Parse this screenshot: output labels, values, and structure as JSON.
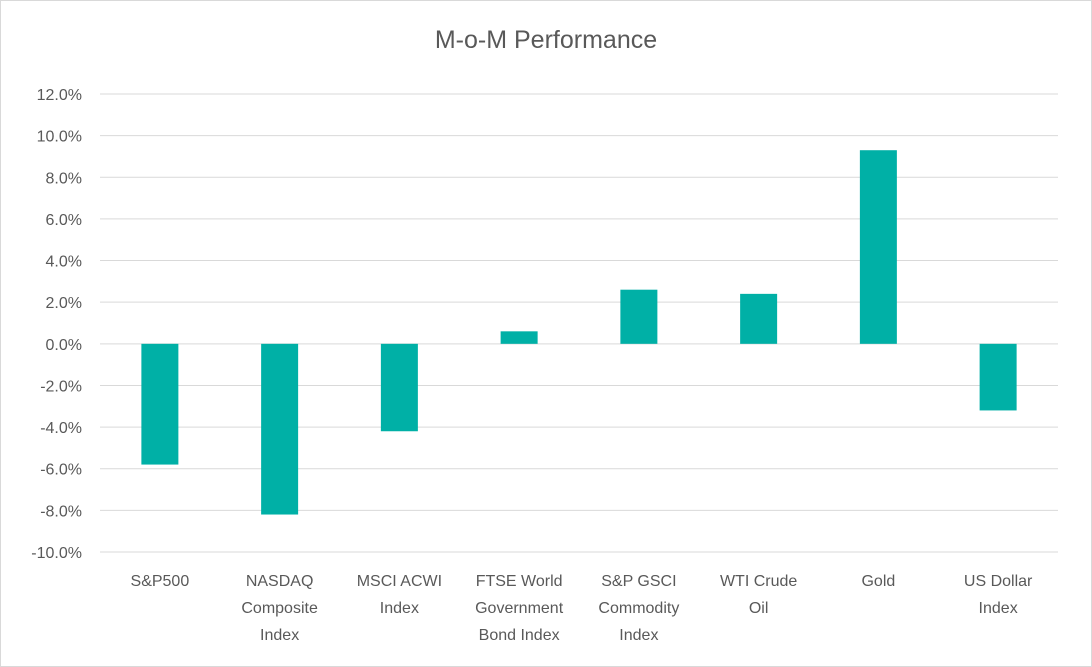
{
  "chart_data": {
    "type": "bar",
    "title": "M-o-M Performance",
    "xlabel": "",
    "ylabel": "",
    "ylim": [
      -10.0,
      12.0
    ],
    "ytick_step": 2.0,
    "ytick_labels": [
      "12.0%",
      "10.0%",
      "8.0%",
      "6.0%",
      "4.0%",
      "2.0%",
      "0.0%",
      "-2.0%",
      "-4.0%",
      "-6.0%",
      "-8.0%",
      "-10.0%"
    ],
    "grid": true,
    "legend": "none",
    "bar_color": "#00b0a6",
    "categories": [
      [
        "S&P500"
      ],
      [
        "NASDAQ",
        "Composite",
        "Index"
      ],
      [
        "MSCI ACWI",
        "Index"
      ],
      [
        "FTSE World",
        "Government",
        "Bond Index"
      ],
      [
        "S&P GSCI",
        "Commodity",
        "Index"
      ],
      [
        "WTI Crude",
        "Oil"
      ],
      [
        "Gold"
      ],
      [
        "US Dollar",
        "Index"
      ]
    ],
    "values": [
      -5.8,
      -8.2,
      -4.2,
      0.6,
      2.6,
      2.4,
      9.3,
      -3.2
    ]
  }
}
